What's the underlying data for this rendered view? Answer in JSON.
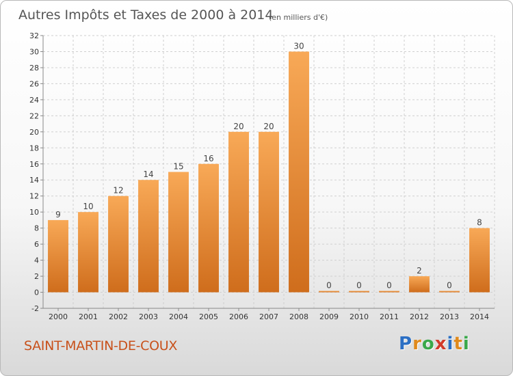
{
  "title": "Autres Impôts et Taxes de 2000 à 2014",
  "title_unit": "(en milliers d'€)",
  "commune": "SAINT-MARTIN-DE-COUX",
  "logo": {
    "letters": [
      "P",
      "r",
      "o",
      "x",
      "i",
      "t",
      "i"
    ],
    "colors": [
      "#2b6fc4",
      "#e08a1c",
      "#3aa84a",
      "#d23a2a",
      "#2b6fc4",
      "#e08a1c",
      "#3aa84a"
    ]
  },
  "colors": {
    "bar_top": "#f8a957",
    "bar_bottom": "#cf6d1c",
    "grid": "#cfcfcf",
    "axis": "#888888"
  },
  "chart_data": {
    "type": "bar",
    "categories": [
      "2000",
      "2001",
      "2002",
      "2003",
      "2004",
      "2005",
      "2006",
      "2007",
      "2008",
      "2009",
      "2010",
      "2011",
      "2012",
      "2013",
      "2014"
    ],
    "values": [
      9,
      10,
      12,
      14,
      15,
      16,
      20,
      20,
      30,
      0,
      0,
      0,
      2,
      0,
      8
    ],
    "data_labels": [
      "9",
      "10",
      "12",
      "14",
      "15",
      "16",
      "20",
      "20",
      "30",
      "0",
      "0",
      "0",
      "2",
      "0",
      "8"
    ],
    "y_ticks": [
      -2,
      0,
      2,
      4,
      6,
      8,
      10,
      12,
      14,
      16,
      18,
      20,
      22,
      24,
      26,
      28,
      30,
      32
    ],
    "ylim": [
      -2,
      32
    ],
    "grid": true,
    "legend": "none"
  }
}
